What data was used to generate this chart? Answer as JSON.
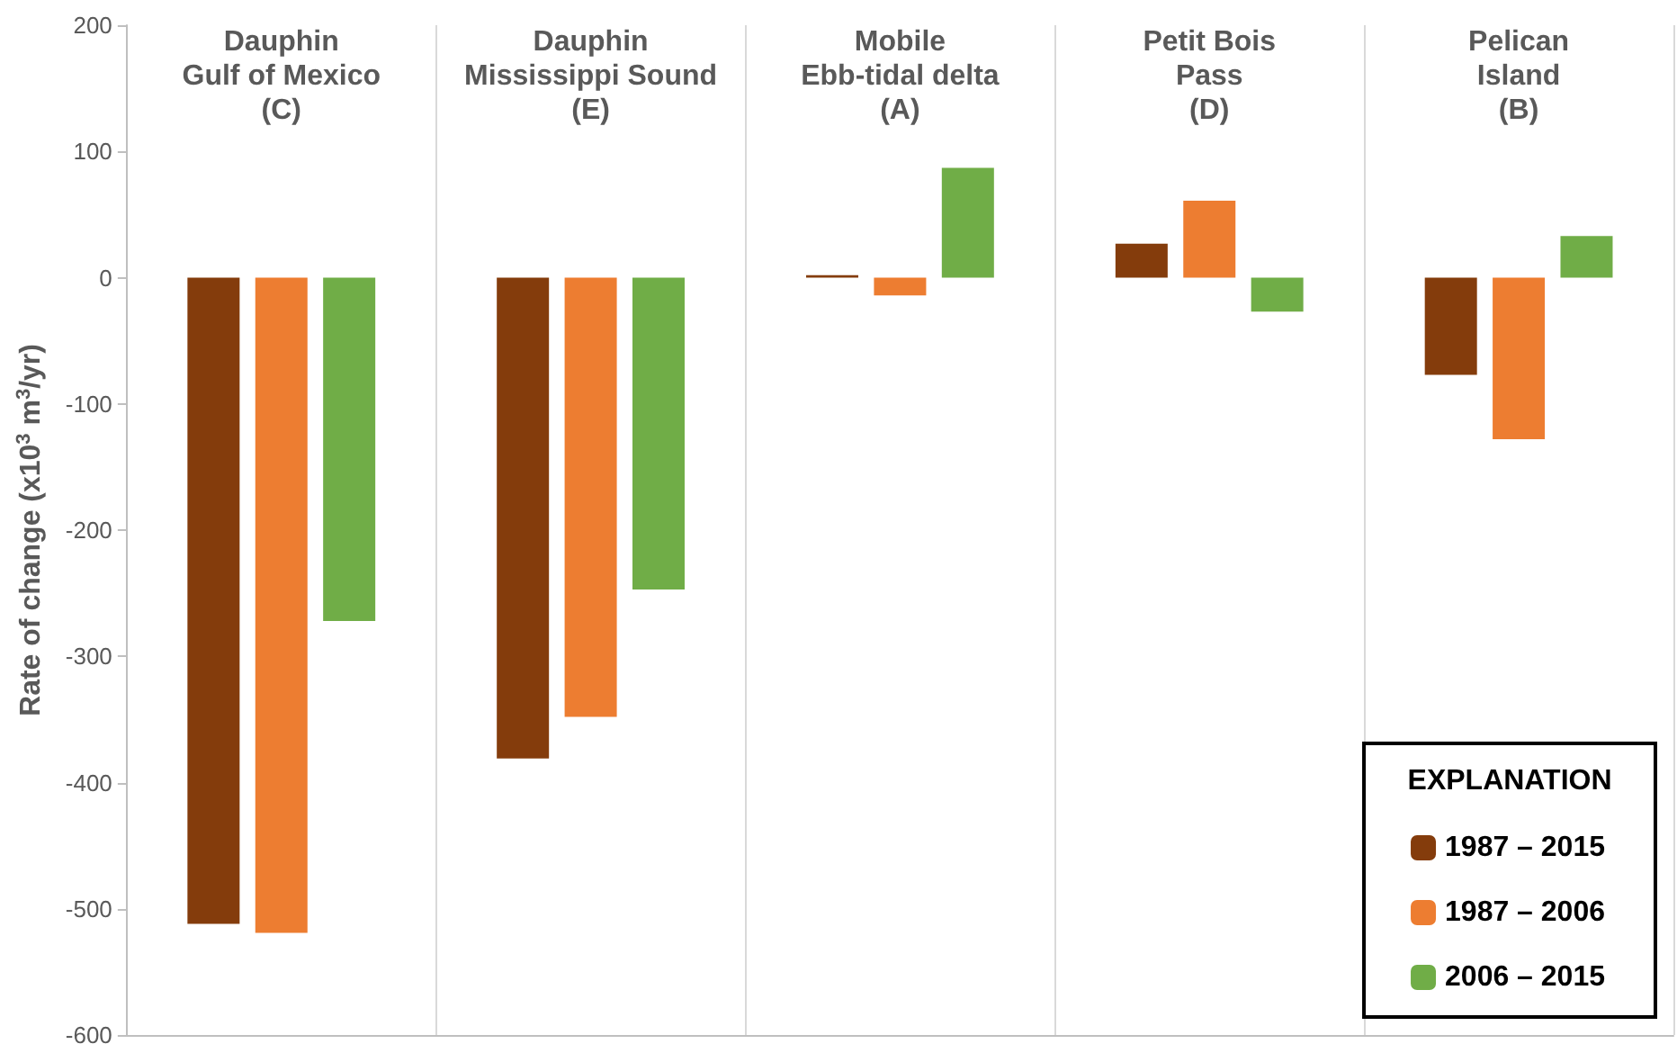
{
  "chart_data": {
    "type": "bar",
    "ylabel": "Rate of change (x10$^{3}$ m$^{3}$/yr)",
    "legend_title": "EXPLANATION",
    "categories": [
      "Dauphin\nGulf of Mexico\n(C)",
      "Dauphin\nMississippi Sound\n(E)",
      "Mobile\nEbb-tidal delta\n(A)",
      "Petit Bois\nPass\n(D)",
      "Pelican\nIsland\n(B)"
    ],
    "series": [
      {
        "name": "1987 – 2015",
        "color": "#843c0c",
        "values": [
          -512,
          -381,
          2,
          27,
          -77
        ]
      },
      {
        "name": "1987 – 2006",
        "color": "#ed7d31",
        "values": [
          -519,
          -348,
          -14,
          61,
          -128
        ]
      },
      {
        "name": "2006 – 2015",
        "color": "#70ad47",
        "values": [
          -272,
          -247,
          87,
          -27,
          33
        ]
      }
    ],
    "ylim": [
      -600,
      200
    ],
    "yticks": [
      -600,
      -500,
      -400,
      -300,
      -200,
      -100,
      0,
      100,
      200
    ],
    "grid": "x",
    "legend": "bottom right"
  }
}
